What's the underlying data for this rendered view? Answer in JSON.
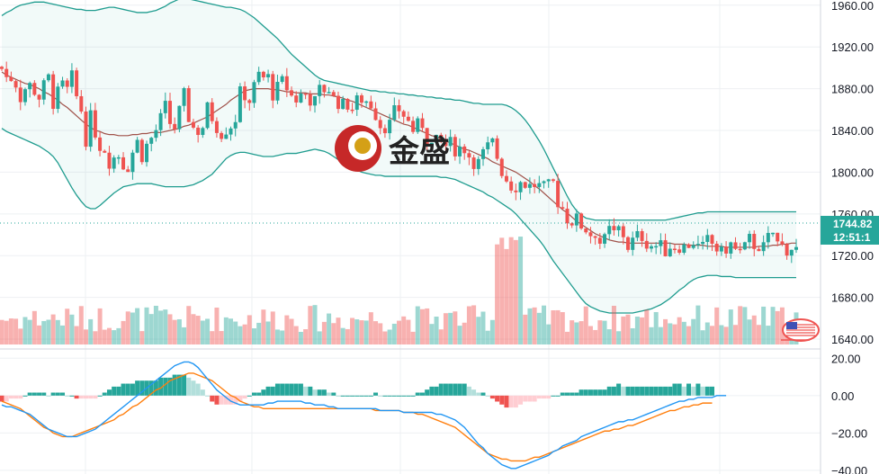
{
  "chart_data": {
    "type": "candlestick",
    "price_axis": {
      "ticks": [
        "1960.00",
        "1920.00",
        "1880.00",
        "1840.00",
        "1800.00",
        "1760.00",
        "1720.00",
        "1680.00",
        "1640.00"
      ],
      "tick_values": [
        1960,
        1920,
        1880,
        1840,
        1800,
        1760,
        1720,
        1680,
        1640
      ],
      "range": [
        1634,
        1965
      ]
    },
    "macd_axis": {
      "ticks": [
        "20.00",
        "0.00",
        "−20.00",
        "−40.00"
      ],
      "tick_values": [
        20,
        0,
        -20,
        -40
      ],
      "range": [
        -42,
        24
      ]
    },
    "last_price": {
      "value": "1744.82",
      "time": "12:51:1"
    },
    "bands_middle": [
      1896,
      1893,
      1891,
      1889,
      1887,
      1885,
      1884,
      1882,
      1880,
      1877,
      1875,
      1872,
      1869,
      1865,
      1862,
      1858,
      1854,
      1850,
      1846,
      1843,
      1840,
      1839,
      1837,
      1836,
      1836,
      1835,
      1835,
      1835,
      1836,
      1836,
      1837,
      1837,
      1838,
      1838,
      1838,
      1839,
      1840,
      1841,
      1842,
      1844,
      1845,
      1847,
      1849,
      1851,
      1853,
      1856,
      1859,
      1862,
      1865,
      1869,
      1872,
      1875,
      1878,
      1879,
      1880,
      1880,
      1880,
      1880,
      1879,
      1879,
      1878,
      1877,
      1877,
      1876,
      1876,
      1876,
      1875,
      1875,
      1875,
      1874,
      1874,
      1873,
      1872,
      1871,
      1869,
      1868,
      1866,
      1864,
      1862,
      1860,
      1858,
      1856,
      1854,
      1852,
      1850,
      1848,
      1846,
      1845,
      1843,
      1841,
      1839,
      1837,
      1835,
      1834,
      1832,
      1830,
      1828,
      1826,
      1824,
      1822,
      1821,
      1819,
      1817,
      1815,
      1813,
      1810,
      1808,
      1806,
      1804,
      1802,
      1800,
      1797,
      1794,
      1791,
      1787,
      1784,
      1780,
      1776,
      1772,
      1768,
      1764,
      1761,
      1757,
      1753,
      1750,
      1747,
      1744,
      1741,
      1739,
      1737,
      1735,
      1734,
      1733,
      1733,
      1732,
      1732,
      1732,
      1732,
      1732,
      1732,
      1732,
      1732,
      1732,
      1732,
      1731,
      1731,
      1731,
      1730,
      1730,
      1730,
      1730,
      1729,
      1729,
      1729,
      1729,
      1728,
      1728,
      1728,
      1728,
      1728,
      1728,
      1728,
      1729,
      1729,
      1729,
      1730,
      1730,
      1731,
      1731,
      1732,
      1732
    ],
    "bands_upper": [
      1950,
      1953,
      1955,
      1958,
      1960,
      1961,
      1962,
      1963,
      1963,
      1963,
      1962,
      1961,
      1960,
      1959,
      1958,
      1957,
      1956,
      1956,
      1955,
      1955,
      1955,
      1956,
      1957,
      1958,
      1958,
      1957,
      1956,
      1955,
      1954,
      1953,
      1953,
      1953,
      1954,
      1955,
      1957,
      1959,
      1962,
      1964,
      1966,
      1967,
      1966,
      1965,
      1964,
      1963,
      1962,
      1961,
      1960,
      1959,
      1958,
      1958,
      1957,
      1956,
      1954,
      1951,
      1948,
      1944,
      1940,
      1936,
      1932,
      1928,
      1923,
      1918,
      1913,
      1909,
      1905,
      1901,
      1897,
      1893,
      1890,
      1888,
      1887,
      1886,
      1885,
      1884,
      1883,
      1882,
      1881,
      1880,
      1879,
      1878,
      1878,
      1877,
      1877,
      1876,
      1876,
      1875,
      1875,
      1874,
      1874,
      1873,
      1873,
      1872,
      1872,
      1871,
      1871,
      1870,
      1870,
      1869,
      1869,
      1868,
      1867,
      1866,
      1866,
      1865,
      1865,
      1865,
      1865,
      1865,
      1864,
      1862,
      1859,
      1855,
      1850,
      1844,
      1837,
      1830,
      1822,
      1813,
      1804,
      1795,
      1786,
      1777,
      1769,
      1763,
      1759,
      1756,
      1755,
      1754,
      1754,
      1754,
      1754,
      1754,
      1754,
      1754,
      1754,
      1754,
      1754,
      1754,
      1754,
      1754,
      1754,
      1754,
      1754,
      1755,
      1756,
      1757,
      1758,
      1759,
      1760,
      1761,
      1761,
      1762,
      1762,
      1762,
      1762,
      1762,
      1762,
      1762,
      1762,
      1762,
      1762,
      1762,
      1762,
      1762,
      1762,
      1762,
      1762,
      1762,
      1762,
      1762,
      1762
    ],
    "bands_lower": [
      1842,
      1839,
      1837,
      1835,
      1833,
      1831,
      1829,
      1827,
      1825,
      1822,
      1819,
      1815,
      1809,
      1801,
      1793,
      1785,
      1778,
      1772,
      1767,
      1765,
      1765,
      1768,
      1772,
      1776,
      1780,
      1783,
      1786,
      1787,
      1788,
      1789,
      1789,
      1789,
      1789,
      1788,
      1787,
      1786,
      1786,
      1786,
      1786,
      1786,
      1787,
      1788,
      1790,
      1792,
      1795,
      1798,
      1803,
      1808,
      1813,
      1816,
      1818,
      1819,
      1819,
      1818,
      1817,
      1816,
      1815,
      1815,
      1815,
      1816,
      1817,
      1818,
      1818,
      1818,
      1819,
      1820,
      1821,
      1822,
      1821,
      1820,
      1818,
      1815,
      1812,
      1809,
      1806,
      1804,
      1802,
      1800,
      1799,
      1798,
      1797,
      1797,
      1796,
      1796,
      1796,
      1796,
      1796,
      1796,
      1796,
      1796,
      1796,
      1796,
      1796,
      1796,
      1795,
      1795,
      1794,
      1793,
      1791,
      1789,
      1787,
      1785,
      1783,
      1781,
      1778,
      1776,
      1773,
      1770,
      1767,
      1764,
      1760,
      1755,
      1750,
      1745,
      1740,
      1735,
      1729,
      1722,
      1715,
      1709,
      1703,
      1697,
      1691,
      1685,
      1679,
      1674,
      1671,
      1669,
      1667,
      1666,
      1665,
      1665,
      1665,
      1665,
      1665,
      1665,
      1666,
      1667,
      1668,
      1669,
      1671,
      1673,
      1676,
      1679,
      1683,
      1687,
      1690,
      1694,
      1697,
      1699,
      1700,
      1701,
      1701,
      1701,
      1700,
      1700,
      1700,
      1699,
      1699,
      1699,
      1699,
      1699,
      1699,
      1699,
      1699,
      1699,
      1699,
      1699,
      1699,
      1699,
      1699
    ],
    "macd_line": [
      -5,
      -6,
      -6,
      -7,
      -8,
      -9,
      -10,
      -12,
      -14,
      -16,
      -18,
      -19,
      -20,
      -21,
      -22,
      -22,
      -22,
      -21,
      -20,
      -19,
      -18,
      -16,
      -14,
      -12,
      -10,
      -8,
      -6,
      -4,
      -2,
      0,
      2,
      4,
      6,
      8,
      10,
      12,
      14,
      16,
      17,
      18,
      18,
      17,
      15,
      12,
      9,
      6,
      3,
      1,
      -1,
      -3,
      -4,
      -5,
      -5,
      -5,
      -5,
      -5,
      -5,
      -4,
      -4,
      -3,
      -3,
      -3,
      -3,
      -3,
      -3,
      -4,
      -4,
      -5,
      -5,
      -5,
      -6,
      -6,
      -7,
      -7,
      -7,
      -7,
      -7,
      -7,
      -7,
      -7,
      -7,
      -8,
      -8,
      -8,
      -8,
      -8,
      -9,
      -9,
      -9,
      -9,
      -9,
      -9,
      -9,
      -10,
      -10,
      -11,
      -12,
      -13,
      -15,
      -17,
      -20,
      -23,
      -26,
      -28,
      -31,
      -33,
      -35,
      -37,
      -38,
      -39,
      -39,
      -38,
      -37,
      -36,
      -35,
      -34,
      -33,
      -32,
      -30,
      -29,
      -27,
      -26,
      -25,
      -24,
      -22,
      -21,
      -20,
      -19,
      -18,
      -17,
      -16,
      -15,
      -14,
      -14,
      -13,
      -13,
      -12,
      -11,
      -10,
      -9,
      -8,
      -7,
      -6,
      -5,
      -4,
      -3,
      -3,
      -2,
      -2,
      -1,
      -1,
      -1,
      -1,
      0,
      0,
      0
    ],
    "signal_line": [
      -3,
      -4,
      -5,
      -6,
      -7,
      -9,
      -11,
      -13,
      -15,
      -17,
      -18,
      -20,
      -21,
      -22,
      -22,
      -22,
      -21,
      -20,
      -19,
      -18,
      -17,
      -16,
      -15,
      -14,
      -13,
      -11,
      -10,
      -8,
      -6,
      -5,
      -3,
      -1,
      1,
      3,
      4,
      6,
      8,
      9,
      10,
      11,
      12,
      12,
      11,
      10,
      9,
      8,
      6,
      4,
      2,
      0,
      -1,
      -3,
      -4,
      -5,
      -6,
      -6,
      -7,
      -7,
      -7,
      -7,
      -7,
      -7,
      -7,
      -7,
      -7,
      -7,
      -7,
      -7,
      -7,
      -7,
      -7,
      -7,
      -7,
      -7,
      -7,
      -7,
      -7,
      -7,
      -7,
      -7,
      -8,
      -8,
      -8,
      -8,
      -8,
      -8,
      -9,
      -9,
      -9,
      -10,
      -10,
      -11,
      -12,
      -13,
      -14,
      -15,
      -16,
      -17,
      -19,
      -21,
      -23,
      -25,
      -27,
      -29,
      -31,
      -32,
      -33,
      -34,
      -34,
      -35,
      -35,
      -35,
      -35,
      -34,
      -33,
      -33,
      -32,
      -31,
      -30,
      -29,
      -28,
      -27,
      -26,
      -25,
      -24,
      -23,
      -22,
      -21,
      -20,
      -19,
      -19,
      -18,
      -18,
      -17,
      -16,
      -16,
      -15,
      -14,
      -13,
      -12,
      -11,
      -10,
      -9,
      -8,
      -8,
      -7,
      -6,
      -6,
      -5,
      -5,
      -4,
      -4,
      -4
    ],
    "watermark": {
      "text": "金盛"
    },
    "colors": {
      "up": "#26a69a",
      "down": "#ef5350",
      "band": "#1f9c8f",
      "middle": "#a0524a",
      "macd": "#2196f3",
      "signal": "#ff7f0e"
    }
  }
}
